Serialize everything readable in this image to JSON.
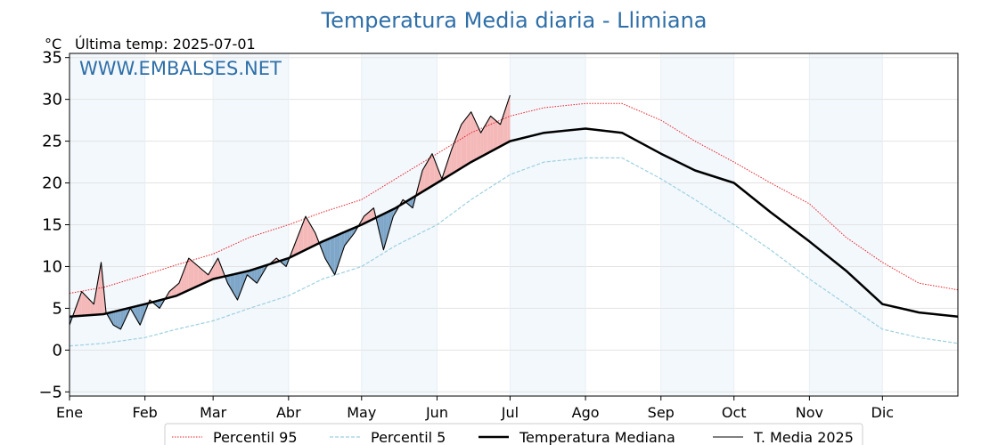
{
  "chart_data": {
    "type": "line",
    "title": "Temperatura Media diaria - Llimiana",
    "unit": "°C",
    "subtitle": "Última temp: 2025-07-01",
    "watermark": "WWW.EMBALSES.NET",
    "ylim": [
      -5.5,
      35.5
    ],
    "y_ticks": [
      -5,
      0,
      5,
      10,
      15,
      20,
      25,
      30,
      35
    ],
    "x_day_range": [
      1,
      366
    ],
    "months": [
      {
        "label": "Ene",
        "start_day": 1
      },
      {
        "label": "Feb",
        "start_day": 32
      },
      {
        "label": "Mar",
        "start_day": 60
      },
      {
        "label": "Abr",
        "start_day": 91
      },
      {
        "label": "May",
        "start_day": 121
      },
      {
        "label": "Jun",
        "start_day": 152
      },
      {
        "label": "Jul",
        "start_day": 182
      },
      {
        "label": "Ago",
        "start_day": 213
      },
      {
        "label": "Sep",
        "start_day": 244
      },
      {
        "label": "Oct",
        "start_day": 274
      },
      {
        "label": "Nov",
        "start_day": 305
      },
      {
        "label": "Dic",
        "start_day": 335
      }
    ],
    "shaded_months": [
      "Ene",
      "Mar",
      "May",
      "Jul",
      "Sep",
      "Nov"
    ],
    "grid": true,
    "legend_position": "bottom",
    "series": [
      {
        "name": "Percentil 95",
        "key": "p95",
        "style": "dotted",
        "color": "#e8202a",
        "days": [
          1,
          15,
          32,
          45,
          60,
          75,
          91,
          105,
          121,
          135,
          152,
          166,
          182,
          196,
          213,
          228,
          244,
          258,
          274,
          289,
          305,
          320,
          335,
          350,
          366
        ],
        "values": [
          6.8,
          7.5,
          9.0,
          10.2,
          11.5,
          13.5,
          15.0,
          16.5,
          18.0,
          20.5,
          23.5,
          26.0,
          28.0,
          29.0,
          29.5,
          29.5,
          27.5,
          25.0,
          22.5,
          20.0,
          17.5,
          13.5,
          10.5,
          8.0,
          7.2
        ]
      },
      {
        "name": "Percentil 5",
        "key": "p5",
        "style": "dashed",
        "color": "#9cd0e0",
        "days": [
          1,
          15,
          32,
          45,
          60,
          75,
          91,
          105,
          121,
          135,
          152,
          166,
          182,
          196,
          213,
          228,
          244,
          258,
          274,
          289,
          305,
          320,
          335,
          350,
          366
        ],
        "values": [
          0.5,
          0.8,
          1.5,
          2.5,
          3.5,
          5.0,
          6.5,
          8.5,
          10.0,
          12.5,
          15.0,
          18.0,
          21.0,
          22.5,
          23.0,
          23.0,
          20.5,
          18.0,
          15.0,
          12.0,
          8.5,
          5.5,
          2.5,
          1.5,
          0.8
        ]
      },
      {
        "name": "Temperatura Mediana",
        "key": "median",
        "style": "solid-thick",
        "color": "#000000",
        "days": [
          1,
          15,
          32,
          45,
          60,
          75,
          91,
          105,
          121,
          135,
          152,
          166,
          182,
          196,
          213,
          228,
          244,
          258,
          274,
          289,
          305,
          320,
          335,
          350,
          366
        ],
        "values": [
          4.0,
          4.3,
          5.5,
          6.5,
          8.5,
          9.5,
          11.0,
          13.0,
          15.0,
          17.0,
          20.0,
          22.5,
          25.0,
          26.0,
          26.5,
          26.0,
          23.5,
          21.5,
          20.0,
          16.5,
          13.0,
          9.5,
          5.5,
          4.5,
          4.0
        ]
      },
      {
        "name": "T. Media 2025",
        "key": "current",
        "style": "solid-thin",
        "color": "#000000",
        "days": [
          1,
          6,
          11,
          14,
          16,
          19,
          22,
          26,
          30,
          34,
          38,
          42,
          46,
          50,
          54,
          58,
          62,
          66,
          70,
          74,
          78,
          82,
          86,
          90,
          94,
          98,
          102,
          106,
          110,
          114,
          118,
          122,
          126,
          130,
          134,
          138,
          142,
          146,
          150,
          154,
          158,
          162,
          166,
          170,
          174,
          178,
          182
        ],
        "values": [
          3.0,
          7.0,
          5.5,
          10.5,
          4.5,
          3.0,
          2.5,
          5.0,
          3.0,
          6.0,
          5.0,
          7.0,
          8.0,
          11.0,
          10.0,
          9.0,
          11.0,
          8.0,
          6.0,
          9.0,
          8.0,
          10.0,
          11.0,
          10.0,
          13.0,
          16.0,
          14.0,
          11.0,
          9.0,
          12.5,
          14.0,
          16.0,
          17.0,
          12.0,
          16.0,
          18.0,
          17.0,
          21.5,
          23.5,
          20.5,
          24.0,
          27.0,
          28.5,
          26.0,
          28.0,
          27.0,
          30.5
        ]
      }
    ]
  }
}
